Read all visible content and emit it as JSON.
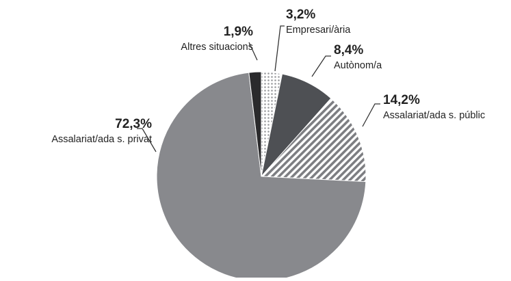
{
  "chart_data": {
    "type": "pie",
    "categories": [
      "Empresari/ària",
      "Autònom/a",
      "Assalariat/ada s. públic",
      "Assalariat/ada s. privat",
      "Altres situacions"
    ],
    "values": [
      3.2,
      8.4,
      14.2,
      72.3,
      1.9
    ],
    "value_labels": [
      "3,2%",
      "8,4%",
      "14,2%",
      "72,3%",
      "1,9%"
    ],
    "colors": [
      "#9a9b9e",
      "#4e5054",
      "#7d7e82",
      "#88898d",
      "#2a2a2c"
    ],
    "patterns": [
      "dots",
      "solid",
      "stripes",
      "solid",
      "solid"
    ]
  }
}
